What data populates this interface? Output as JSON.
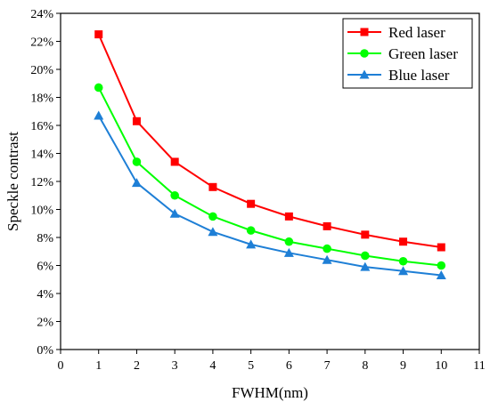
{
  "chart_data": {
    "type": "line",
    "title": "",
    "xlabel": "FWHM(nm)",
    "ylabel": "Speckle contrast",
    "xlim": [
      0,
      11
    ],
    "ylim": [
      0,
      24
    ],
    "x_ticks": [
      "0",
      "1",
      "2",
      "3",
      "4",
      "5",
      "6",
      "7",
      "8",
      "9",
      "10",
      "11"
    ],
    "y_ticks": [
      "0%",
      "2%",
      "4%",
      "6%",
      "8%",
      "10%",
      "12%",
      "14%",
      "16%",
      "18%",
      "20%",
      "22%",
      "24%"
    ],
    "x": [
      1,
      2,
      3,
      4,
      5,
      6,
      7,
      8,
      9,
      10
    ],
    "y_unit": "%",
    "grid": false,
    "legend_position": "top-right",
    "series": [
      {
        "name": "Red laser",
        "color": "#ff0000",
        "marker": "square",
        "values": [
          22.5,
          16.3,
          13.4,
          11.6,
          10.4,
          9.5,
          8.8,
          8.2,
          7.7,
          7.3
        ]
      },
      {
        "name": "Green laser",
        "color": "#00ff00",
        "marker": "circle",
        "values": [
          18.7,
          13.4,
          11.0,
          9.5,
          8.5,
          7.7,
          7.2,
          6.7,
          6.3,
          6.0
        ]
      },
      {
        "name": "Blue laser",
        "color": "#1e7fd6",
        "marker": "triangle",
        "values": [
          16.7,
          11.9,
          9.7,
          8.4,
          7.5,
          6.9,
          6.4,
          5.9,
          5.6,
          5.3
        ]
      }
    ]
  }
}
